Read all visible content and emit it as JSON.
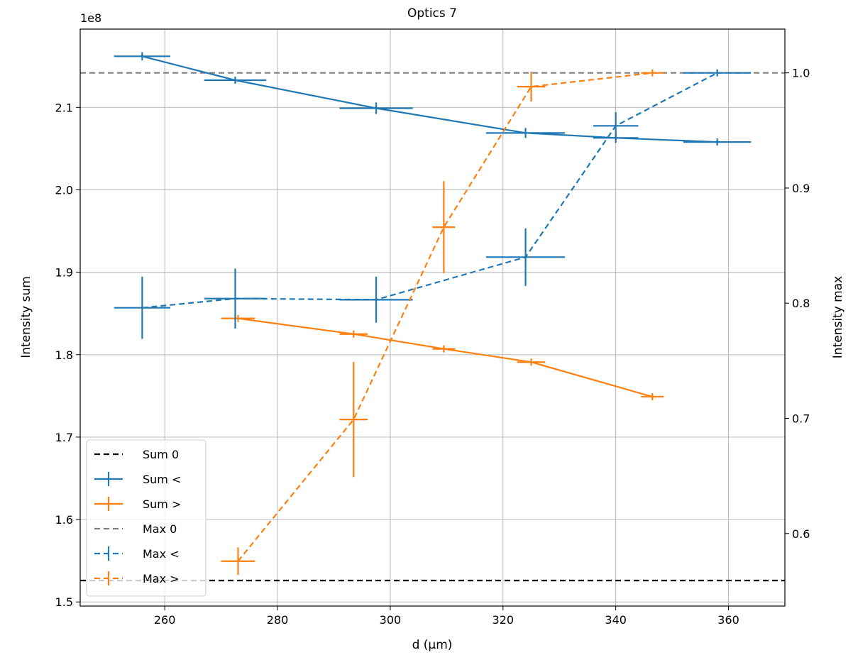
{
  "chart_data": {
    "type": "line",
    "title": "Optics 7",
    "xlabel": "d (µm)",
    "ylabel_left": "Intensity sum",
    "ylabel_right": "Intensity max",
    "left_offset_text": "1e8",
    "xlim": [
      245,
      370
    ],
    "ylim_left": [
      1.495,
      2.195
    ],
    "ylim_right": [
      0.537,
      1.038
    ],
    "x_ticks": [
      260,
      280,
      300,
      320,
      340,
      360
    ],
    "y_ticks_left": [
      1.5,
      1.6,
      1.7,
      1.8,
      1.9,
      2.0,
      2.1
    ],
    "y_ticks_right": [
      0.6,
      0.7,
      0.8,
      0.9,
      1.0
    ],
    "grid": true,
    "legend_position": "lower-left",
    "series": [
      {
        "name": "Sum 0",
        "axis": "left",
        "style": "hline",
        "linestyle": "dashed",
        "color": "#000000",
        "y": 1.526
      },
      {
        "name": "Sum <",
        "axis": "left",
        "linestyle": "solid",
        "color": "#1f77b4",
        "points": [
          {
            "x": 256,
            "y": 2.162,
            "xerr": 5,
            "yerr": 0.005
          },
          {
            "x": 272.5,
            "y": 2.133,
            "xerr": 5.5,
            "yerr": 0.004
          },
          {
            "x": 297.5,
            "y": 2.099,
            "xerr": 6.5,
            "yerr": 0.007
          },
          {
            "x": 324,
            "y": 2.069,
            "xerr": 7,
            "yerr": 0.006
          },
          {
            "x": 340,
            "y": 2.063,
            "xerr": 4,
            "yerr": 0.006
          },
          {
            "x": 358,
            "y": 2.058,
            "xerr": 6,
            "yerr": 0.004
          }
        ]
      },
      {
        "name": "Sum >",
        "axis": "left",
        "linestyle": "solid",
        "color": "#ff7f0e",
        "points": [
          {
            "x": 273,
            "y": 1.844,
            "xerr": 3,
            "yerr": 0.003
          },
          {
            "x": 293.5,
            "y": 1.825,
            "xerr": 2.5,
            "yerr": 0.003
          },
          {
            "x": 309.5,
            "y": 1.807,
            "xerr": 2,
            "yerr": 0.003
          },
          {
            "x": 325,
            "y": 1.791,
            "xerr": 2.5,
            "yerr": 0.003
          },
          {
            "x": 346.5,
            "y": 1.749,
            "xerr": 2,
            "yerr": 0.003
          }
        ]
      },
      {
        "name": "Max 0",
        "axis": "right",
        "style": "hline",
        "linestyle": "dashed",
        "color": "#808080",
        "y": 1.0
      },
      {
        "name": "Max <",
        "axis": "right",
        "linestyle": "dashed",
        "color": "#1f77b4",
        "points": [
          {
            "x": 256,
            "y": 0.796,
            "xerr": 5,
            "yerr": 0.027
          },
          {
            "x": 272.5,
            "y": 0.804,
            "xerr": 5.5,
            "yerr": 0.026
          },
          {
            "x": 297.5,
            "y": 0.803,
            "xerr": 6.5,
            "yerr": 0.02
          },
          {
            "x": 324,
            "y": 0.84,
            "xerr": 7,
            "yerr": 0.025
          },
          {
            "x": 340,
            "y": 0.954,
            "xerr": 4,
            "yerr": 0.012
          },
          {
            "x": 358,
            "y": 1.0,
            "xerr": 6,
            "yerr": 0.0
          }
        ]
      },
      {
        "name": "Max >",
        "axis": "right",
        "linestyle": "dashed",
        "color": "#ff7f0e",
        "points": [
          {
            "x": 273,
            "y": 0.576,
            "xerr": 3,
            "yerr": 0.012
          },
          {
            "x": 293.5,
            "y": 0.699,
            "xerr": 2.5,
            "yerr": 0.05
          },
          {
            "x": 309.5,
            "y": 0.866,
            "xerr": 2,
            "yerr": 0.04
          },
          {
            "x": 325,
            "y": 0.988,
            "xerr": 2.5,
            "yerr": 0.013
          },
          {
            "x": 346.5,
            "y": 1.0,
            "xerr": 2,
            "yerr": 0.0
          }
        ]
      }
    ]
  }
}
